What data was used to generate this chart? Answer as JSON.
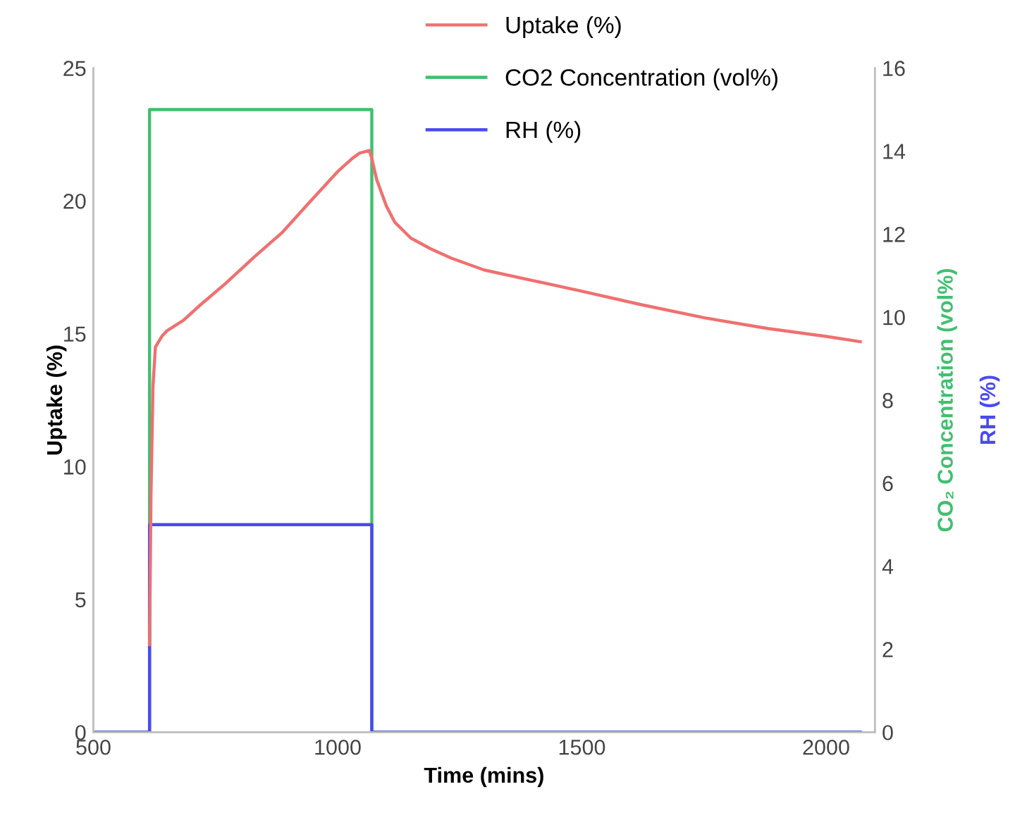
{
  "chart_data": {
    "type": "line",
    "xlabel": "Time (mins)",
    "ylabel": "Uptake (%)",
    "y2label": "CO₂ Concentration (vol%)",
    "annotations": [
      "RH (%)"
    ],
    "xlim": [
      500,
      2100
    ],
    "xticks": [
      500,
      1000,
      1500,
      2000
    ],
    "ylim": [
      0,
      25
    ],
    "yticks": [
      0,
      5,
      10,
      15,
      20,
      25
    ],
    "y2lim": [
      0,
      16
    ],
    "y2ticks": [
      0,
      2,
      4,
      6,
      8,
      10,
      12,
      14,
      16
    ],
    "grid": false,
    "legend": "top",
    "marker": "none",
    "line_style": "solid",
    "series": [
      {
        "name": "Uptake (%)",
        "color": "#f07070",
        "x": [
          615,
          618,
          622,
          627,
          640,
          650,
          684,
          720,
          771,
          830,
          886,
          940,
          1000,
          1030,
          1045,
          1065,
          1070,
          1080,
          1100,
          1117,
          1150,
          1190,
          1232,
          1300,
          1400,
          1500,
          1620,
          1751,
          1880,
          2000,
          2070
        ],
        "values": [
          3.3,
          9,
          13,
          14.5,
          14.9,
          15.1,
          15.5,
          16.1,
          16.9,
          17.9,
          18.8,
          19.9,
          21.1,
          21.6,
          21.8,
          21.9,
          21.6,
          20.8,
          19.8,
          19.2,
          18.6,
          18.2,
          17.85,
          17.4,
          17.0,
          16.6,
          16.1,
          15.6,
          15.2,
          14.9,
          14.7
        ]
      },
      {
        "name": "CO2 Concentration (vol%)",
        "color": "#40c070",
        "axis": "y2",
        "x": [
          500,
          615,
          615,
          1070,
          1070,
          2070
        ],
        "values": [
          0,
          0,
          15,
          15,
          0,
          0
        ]
      },
      {
        "name": "RH (%)",
        "color": "#4a4af0",
        "axis": "y2",
        "x": [
          500,
          615,
          615,
          1070,
          1070,
          2070
        ],
        "values": [
          0,
          0,
          5,
          5,
          0,
          0
        ]
      }
    ]
  }
}
